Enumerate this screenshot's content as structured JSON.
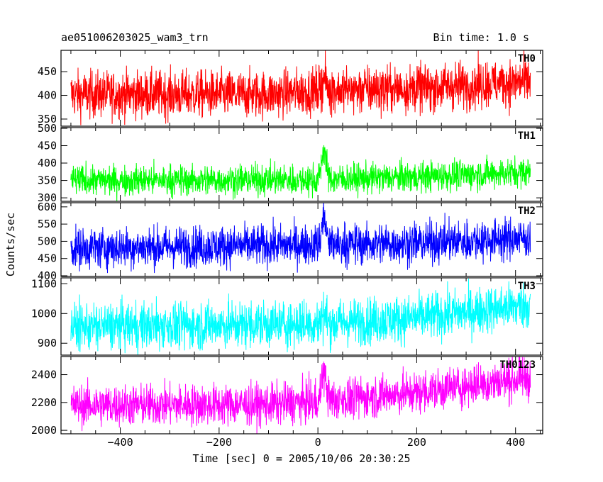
{
  "header": {
    "title": "ae051006203025_wam3_trn",
    "bin_time": "Bin time: 1.0 s"
  },
  "chart_data": {
    "type": "line",
    "xlabel": "Time [sec] 0 = 2005/10/06 20:30:25",
    "ylabel": "Counts/sec",
    "xlim": [
      -520,
      455
    ],
    "x_ticks": [
      -400,
      -200,
      0,
      200,
      400
    ],
    "x_range": [
      -500,
      430
    ],
    "panels": [
      {
        "name": "TH0",
        "color": "#ff0000",
        "ylim": [
          335,
          495
        ],
        "y_ticks": [
          350,
          400,
          450
        ],
        "baseline": [
          [
            -500,
            402
          ],
          [
            -100,
            402
          ],
          [
            0,
            410
          ],
          [
            200,
            415
          ],
          [
            430,
            430
          ]
        ],
        "spread": 25,
        "burst": {
          "t": 12,
          "height": 30
        }
      },
      {
        "name": "TH1",
        "color": "#00ff00",
        "ylim": [
          290,
          502
        ],
        "y_ticks": [
          300,
          350,
          400,
          450,
          500
        ],
        "baseline": [
          [
            -500,
            350
          ],
          [
            0,
            352
          ],
          [
            200,
            360
          ],
          [
            430,
            375
          ]
        ],
        "spread": 22,
        "burst": {
          "t": 12,
          "height": 110
        }
      },
      {
        "name": "TH2",
        "color": "#0000ff",
        "ylim": [
          398,
          612
        ],
        "y_ticks": [
          400,
          450,
          500,
          550,
          600
        ],
        "baseline": [
          [
            -500,
            480
          ],
          [
            0,
            490
          ],
          [
            200,
            495
          ],
          [
            430,
            510
          ]
        ],
        "spread": 30,
        "burst": {
          "t": 12,
          "height": 100
        }
      },
      {
        "name": "TH3",
        "color": "#00ffff",
        "ylim": [
          860,
          1120
        ],
        "y_ticks": [
          900,
          1000,
          1100
        ],
        "baseline": [
          [
            -500,
            955
          ],
          [
            0,
            965
          ],
          [
            200,
            985
          ],
          [
            430,
            1030
          ]
        ],
        "spread": 40,
        "burst": {
          "t": 12,
          "height": 40
        }
      },
      {
        "name": "TH0123",
        "color": "#ff00ff",
        "ylim": [
          1975,
          2530
        ],
        "y_ticks": [
          2000,
          2200,
          2400
        ],
        "baseline": [
          [
            -500,
            2180
          ],
          [
            -100,
            2185
          ],
          [
            0,
            2210
          ],
          [
            200,
            2270
          ],
          [
            430,
            2380
          ]
        ],
        "spread": 75,
        "burst": {
          "t": 12,
          "height": 260
        }
      }
    ]
  }
}
